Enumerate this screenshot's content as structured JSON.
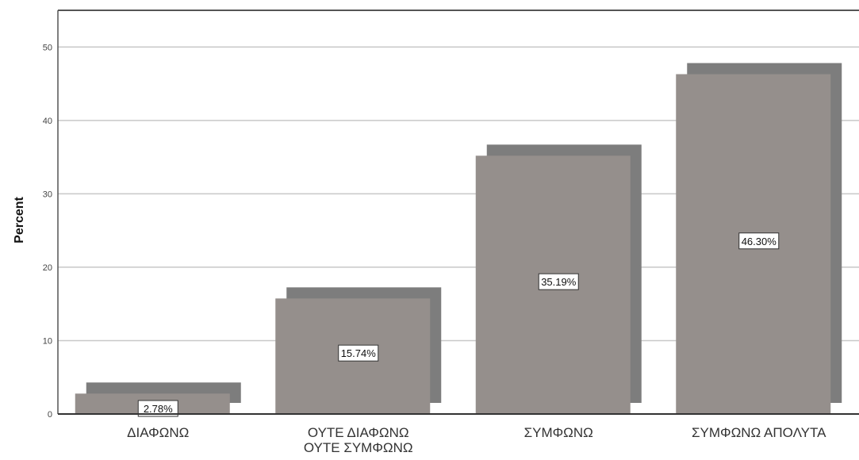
{
  "chart_data": {
    "type": "bar",
    "title": "",
    "xlabel": "",
    "ylabel": "Percent",
    "ylim": [
      0,
      55
    ],
    "yticks": [
      0,
      10,
      20,
      30,
      40,
      50
    ],
    "grid": true,
    "categories": [
      [
        "ΔΙΑΦΩΝΩ"
      ],
      [
        "ΟΥΤΕ ΔΙΑΦΩΝΩ",
        "ΟΥΤΕ ΣΥΜΦΩΝΩ"
      ],
      [
        "ΣΥΜΦΩΝΩ"
      ],
      [
        "ΣΥΜΦΩΝΩ ΑΠΟΛΥΤΑ"
      ]
    ],
    "values": [
      2.78,
      15.74,
      35.19,
      46.3
    ],
    "labels": [
      "2.78%",
      "15.74%",
      "35.19%",
      "46.30%"
    ],
    "colors": {
      "bar_front": "#958f8c",
      "bar_shadow": "#7d7d7d",
      "grid": "#c8c8c8",
      "axis": "#555555"
    }
  }
}
